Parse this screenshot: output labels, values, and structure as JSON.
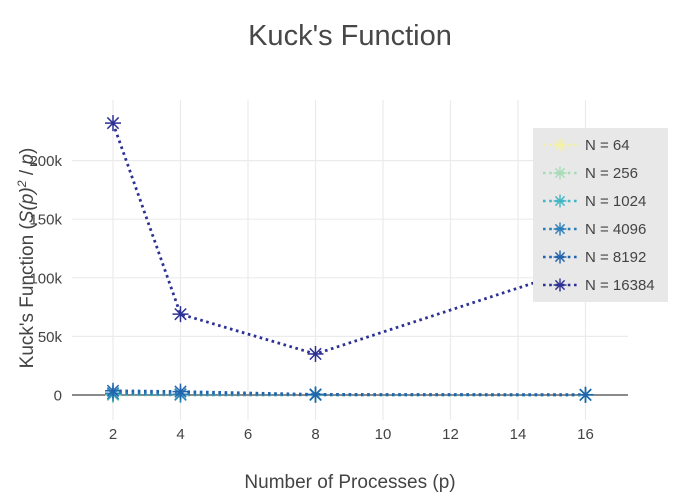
{
  "chart_data": {
    "type": "line",
    "title": "Kuck's Function",
    "xlabel": "Number of Processes (p)",
    "ylabel": "Kuck's Function (S(p)² / p)",
    "line_style": "dotted",
    "marker": "asterisk",
    "legend_position": "right-inside",
    "legend_bg": "#e8e8e8",
    "grid": true,
    "grid_color": "#ebebeb",
    "zeroline_color": "#444444",
    "text_color": "#444444",
    "xlim": [
      0.8,
      17.3
    ],
    "ylim": [
      -17000,
      252000
    ],
    "x": [
      2,
      4,
      8,
      16
    ],
    "xticks": [
      2,
      4,
      6,
      8,
      10,
      12,
      14,
      16
    ],
    "yticks": [
      {
        "label": "0",
        "value": 0
      },
      {
        "label": "50k",
        "value": 50000
      },
      {
        "label": "100k",
        "value": 100000
      },
      {
        "label": "150k",
        "value": 150000
      },
      {
        "label": "200k",
        "value": 200000
      }
    ],
    "series": [
      {
        "name": "N = 64",
        "color": "#f3f2a4",
        "values": [
          40,
          15,
          6,
          3
        ]
      },
      {
        "name": "N = 256",
        "color": "#a6dcb5",
        "values": [
          150,
          60,
          25,
          12
        ]
      },
      {
        "name": "N = 1024",
        "color": "#41b6c4",
        "values": [
          500,
          200,
          80,
          40
        ]
      },
      {
        "name": "N = 4096",
        "color": "#2b7fb9",
        "values": [
          1500,
          650,
          260,
          130
        ]
      },
      {
        "name": "N = 8192",
        "color": "#2263ad",
        "values": [
          3600,
          2900,
          500,
          260
        ]
      },
      {
        "name": "N = 16384",
        "color": "#2c3193",
        "values": [
          232000,
          69000,
          35000,
          110000
        ]
      }
    ]
  },
  "ui": {
    "title": "Kuck's Function",
    "x_axis_title": "Number of Processes (p)",
    "y_title_parts": {
      "pre": "Kuck's Function (",
      "s_func": "S(p)",
      "sup": "2",
      "mid": " / ",
      "p_var": "p",
      "post": ")"
    }
  }
}
